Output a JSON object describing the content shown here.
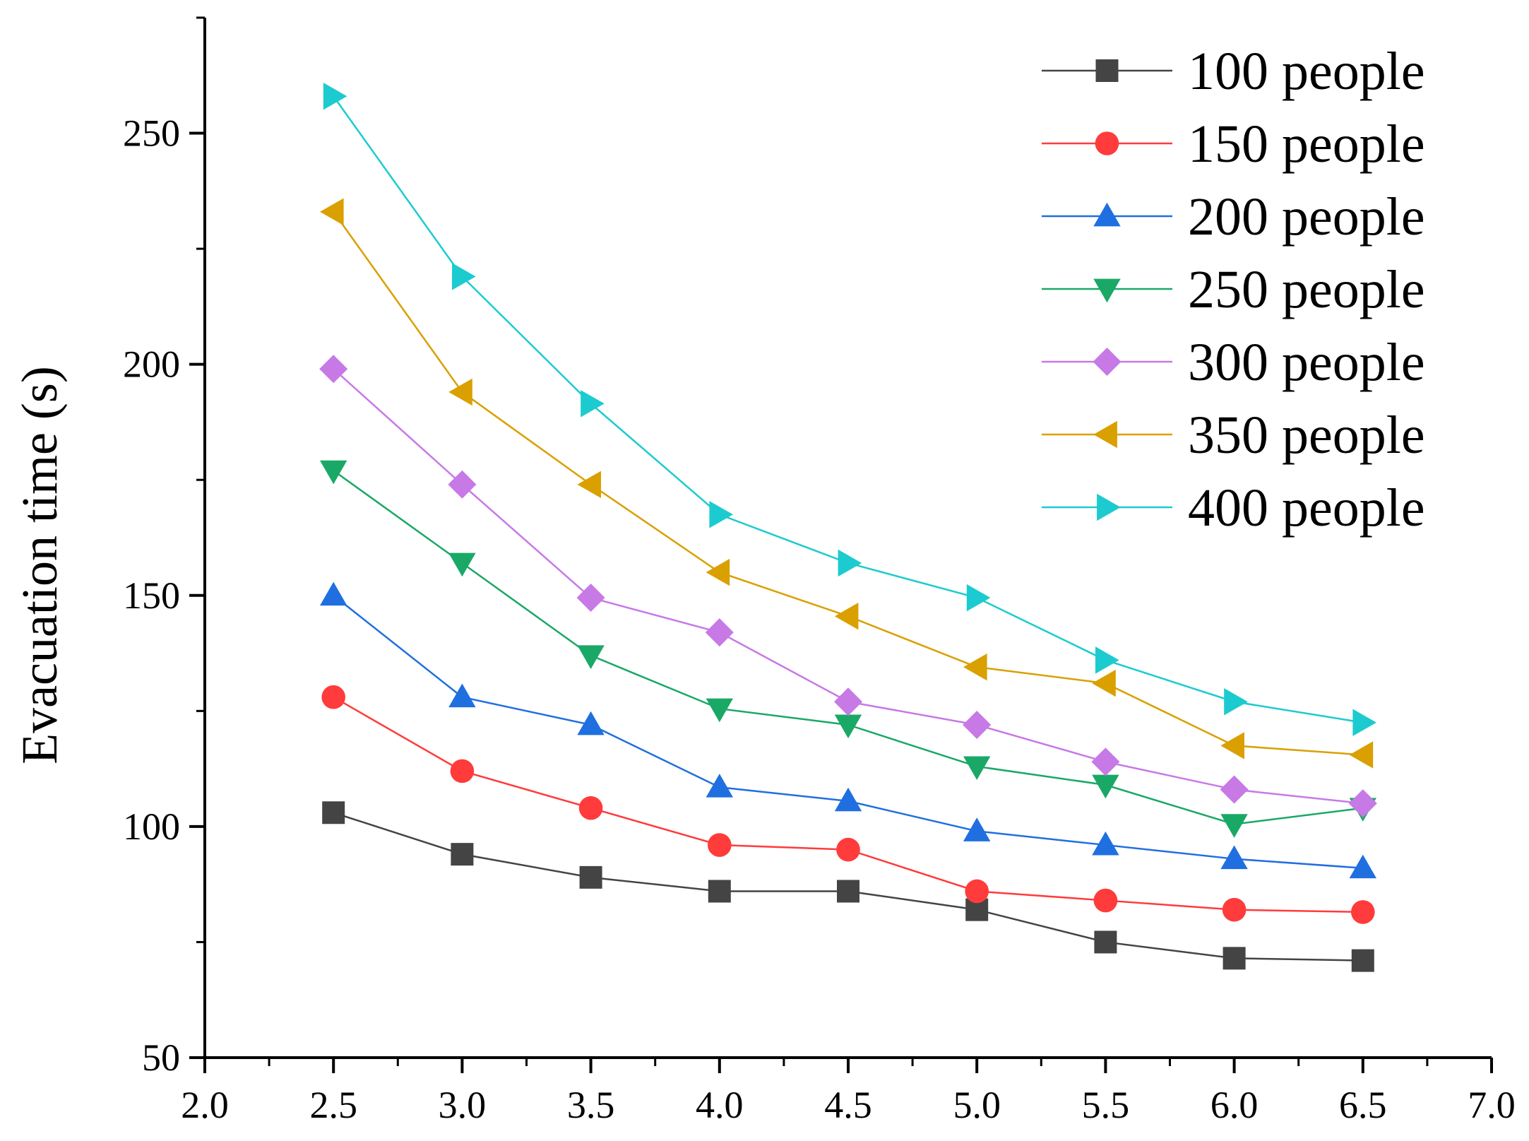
{
  "chart_data": {
    "type": "line",
    "title": "",
    "xlabel": "",
    "ylabel": "Evacuation time (s)",
    "xlim": [
      2.0,
      7.0
    ],
    "ylim": [
      50,
      275
    ],
    "grid": false,
    "legend_position": "top-right",
    "x": [
      2.5,
      3.0,
      3.5,
      4.0,
      4.5,
      5.0,
      5.5,
      6.0,
      6.5
    ],
    "x_ticks": [
      "2.0",
      "2.5",
      "3.0",
      "3.5",
      "4.0",
      "4.5",
      "5.0",
      "5.5",
      "6.0",
      "6.5",
      "7.0"
    ],
    "y_ticks": [
      "50",
      "100",
      "150",
      "200",
      "250"
    ],
    "series": [
      {
        "name": "100 people",
        "color": "#444444",
        "marker": "square",
        "values": [
          103,
          94,
          89,
          86,
          86,
          82,
          75,
          71.5,
          71
        ]
      },
      {
        "name": "150 people",
        "color": "#ff3b3b",
        "marker": "circle",
        "values": [
          128,
          112,
          104,
          96,
          95,
          86,
          84,
          82,
          81.5
        ]
      },
      {
        "name": "200 people",
        "color": "#1f6fe0",
        "marker": "triangle-up",
        "values": [
          150,
          128,
          122,
          108.5,
          105.5,
          99,
          96,
          93,
          91
        ]
      },
      {
        "name": "250 people",
        "color": "#1aa866",
        "marker": "triangle-down",
        "values": [
          177,
          157,
          137,
          125.5,
          122,
          113,
          109,
          100.5,
          104
        ]
      },
      {
        "name": "300 people",
        "color": "#c779e6",
        "marker": "diamond",
        "values": [
          199,
          174,
          149.5,
          142,
          127,
          122,
          114,
          108,
          105
        ]
      },
      {
        "name": "350 people",
        "color": "#d9a000",
        "marker": "triangle-left",
        "values": [
          233,
          194,
          174,
          155,
          145.5,
          134.5,
          131,
          117.5,
          115.5
        ]
      },
      {
        "name": "400 people",
        "color": "#1ccbcf",
        "marker": "triangle-right",
        "values": [
          258,
          219,
          191.5,
          167.5,
          157,
          149.5,
          136,
          127,
          122.5
        ]
      }
    ]
  }
}
